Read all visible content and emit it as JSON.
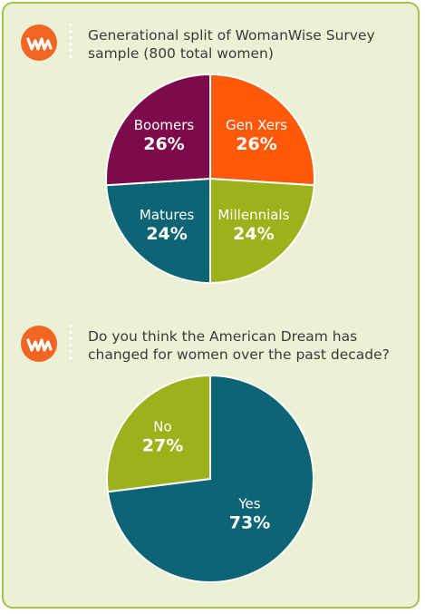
{
  "chart_data": [
    {
      "type": "pie",
      "title": "Generational split of WomanWise Survey sample (800 total women)",
      "title_lines": [
        "Generational split of WomanWise Survey",
        "sample (800 total women)"
      ],
      "slices": [
        {
          "label": "Gen Xers",
          "value": 26,
          "display": "26%",
          "color": "#ff5a0a"
        },
        {
          "label": "Millennials",
          "value": 24,
          "display": "24%",
          "color": "#9cb11a"
        },
        {
          "label": "Matures",
          "value": 24,
          "display": "24%",
          "color": "#0d6474"
        },
        {
          "label": "Boomers",
          "value": 26,
          "display": "26%",
          "color": "#7d0a4a"
        }
      ]
    },
    {
      "type": "pie",
      "title": "Do you think the American Dream has changed for women over the past decade?",
      "title_lines": [
        "Do you think the American Dream has",
        "changed for women over the past decade?"
      ],
      "slices": [
        {
          "label": "Yes",
          "value": 73,
          "display": "73%",
          "color": "#0d6474"
        },
        {
          "label": "No",
          "value": 27,
          "display": "27%",
          "color": "#9cb11a"
        }
      ]
    }
  ],
  "colors": {
    "panel_bg": "#eaf1d4",
    "panel_border": "#a7c14a",
    "logo_orange": "#f26522",
    "text": "#3b3b3b"
  },
  "icons": [
    "womanwise-logo-icon",
    "womanwise-logo-icon"
  ]
}
